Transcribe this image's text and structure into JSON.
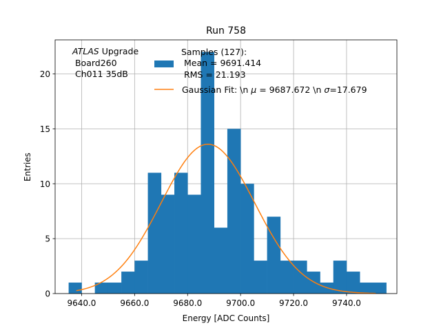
{
  "chart_data": {
    "type": "bar",
    "title": "Run 758",
    "xlabel": "Energy [ADC Counts]",
    "ylabel": "Entries",
    "xlim": [
      9630.0,
      9759.0
    ],
    "ylim": [
      0,
      23.1
    ],
    "xticks": [
      9640.0,
      9660.0,
      9680.0,
      9700.0,
      9720.0,
      9740.0
    ],
    "xtick_labels": [
      "9640.0",
      "9660.0",
      "9680.0",
      "9700.0",
      "9720.0",
      "9740.0"
    ],
    "yticks": [
      0,
      5,
      10,
      15,
      20
    ],
    "ytick_labels": [
      "0",
      "5",
      "10",
      "15",
      "20"
    ],
    "grid": true,
    "legend_position": "top-center",
    "annotation": {
      "italic": "ATLAS",
      "line1_rest": " Upgrade",
      "line2": " Board260",
      "line3": " Ch011 35dB"
    },
    "histogram": {
      "name": "Samples (127):",
      "mean_line": " Mean = 9691.414",
      "rms_line": " RMS = 21.193",
      "color": "#1f77b4",
      "bin_edges": [
        9635.1,
        9640.0,
        9645.0,
        9650.0,
        9655.0,
        9660.0,
        9665.0,
        9670.0,
        9675.0,
        9680.0,
        9685.0,
        9690.0,
        9695.0,
        9700.0,
        9705.0,
        9710.0,
        9715.0,
        9720.0,
        9725.0,
        9730.0,
        9735.0,
        9740.0,
        9745.0,
        9750.0,
        9755.0
      ],
      "counts": [
        1,
        0,
        1,
        1,
        2,
        3,
        11,
        9,
        11,
        9,
        22,
        6,
        15,
        10,
        3,
        7,
        3,
        3,
        2,
        1,
        3,
        2,
        1,
        1
      ]
    },
    "fit": {
      "type": "gaussian",
      "label_prefix": "Gaussian Fit: \\n ",
      "label_mu": "μ",
      "label_mid": " = 9687.672 \\n ",
      "label_sigma": "σ",
      "label_end": "=17.679",
      "mu": 9687.672,
      "sigma": 17.679,
      "amplitude": 13.6,
      "x_start": 9638.0,
      "x_end": 9751.0,
      "color": "#ff7f0e"
    }
  }
}
